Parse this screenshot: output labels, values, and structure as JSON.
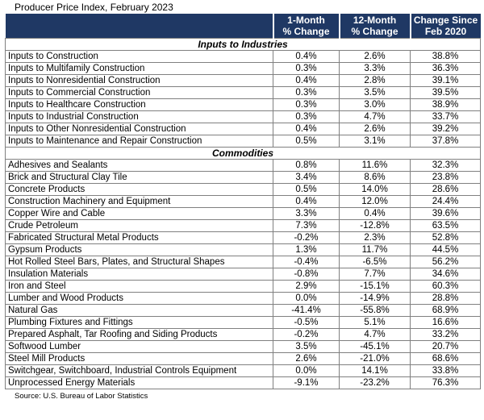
{
  "colors": {
    "header_bg": "#1F3864",
    "header_text": "#FFFFFF",
    "grid": "#808080",
    "text": "#000000"
  },
  "chart_data": {
    "type": "table",
    "title": "Producer Price Index, February 2023",
    "source": "Source: U.S. Bureau of Labor Statistics",
    "columns": [
      "",
      "1-Month\n% Change",
      "12-Month\n% Change",
      "Change Since\nFeb 2020"
    ],
    "sections": [
      {
        "name": "Inputs to Industries",
        "rows": [
          {
            "label": "Inputs to Construction",
            "values": [
              "0.4%",
              "2.6%",
              "38.8%"
            ]
          },
          {
            "label": "Inputs to Multifamily Construction",
            "values": [
              "0.3%",
              "3.3%",
              "36.3%"
            ]
          },
          {
            "label": "Inputs to Nonresidential Construction",
            "values": [
              "0.4%",
              "2.8%",
              "39.1%"
            ]
          },
          {
            "label": "Inputs to Commercial Construction",
            "values": [
              "0.3%",
              "3.5%",
              "39.5%"
            ]
          },
          {
            "label": "Inputs to Healthcare Construction",
            "values": [
              "0.3%",
              "3.0%",
              "38.9%"
            ]
          },
          {
            "label": "Inputs to Industrial Construction",
            "values": [
              "0.3%",
              "4.7%",
              "33.7%"
            ]
          },
          {
            "label": "Inputs to Other Nonresidential Construction",
            "values": [
              "0.4%",
              "2.6%",
              "39.2%"
            ]
          },
          {
            "label": "Inputs to Maintenance and Repair Construction",
            "values": [
              "0.5%",
              "3.1%",
              "37.8%"
            ]
          }
        ]
      },
      {
        "name": "Commodities",
        "rows": [
          {
            "label": "Adhesives and Sealants",
            "values": [
              "0.8%",
              "11.6%",
              "32.3%"
            ]
          },
          {
            "label": "Brick and Structural Clay Tile",
            "values": [
              "3.4%",
              "8.6%",
              "23.8%"
            ]
          },
          {
            "label": "Concrete Products",
            "values": [
              "0.5%",
              "14.0%",
              "28.6%"
            ]
          },
          {
            "label": "Construction Machinery and Equipment",
            "values": [
              "0.4%",
              "12.0%",
              "24.4%"
            ]
          },
          {
            "label": "Copper Wire and Cable",
            "values": [
              "3.3%",
              "0.4%",
              "39.6%"
            ]
          },
          {
            "label": "Crude Petroleum",
            "values": [
              "7.3%",
              "-12.8%",
              "63.5%"
            ]
          },
          {
            "label": "Fabricated Structural Metal Products",
            "values": [
              "-0.2%",
              "2.3%",
              "52.8%"
            ]
          },
          {
            "label": "Gypsum Products",
            "values": [
              "1.3%",
              "11.7%",
              "44.5%"
            ]
          },
          {
            "label": "Hot Rolled Steel Bars, Plates, and Structural Shapes",
            "values": [
              "-0.4%",
              "-6.5%",
              "56.2%"
            ]
          },
          {
            "label": "Insulation Materials",
            "values": [
              "-0.8%",
              "7.7%",
              "34.6%"
            ]
          },
          {
            "label": "Iron and Steel",
            "values": [
              "2.9%",
              "-15.1%",
              "60.3%"
            ]
          },
          {
            "label": "Lumber and Wood Products",
            "values": [
              "0.0%",
              "-14.9%",
              "28.8%"
            ]
          },
          {
            "label": "Natural Gas",
            "values": [
              "-41.4%",
              "-55.8%",
              "68.9%"
            ]
          },
          {
            "label": "Plumbing Fixtures and Fittings",
            "values": [
              "-0.5%",
              "5.1%",
              "16.6%"
            ]
          },
          {
            "label": "Prepared Asphalt, Tar Roofing and Siding Products",
            "values": [
              "-0.2%",
              "4.7%",
              "33.2%"
            ]
          },
          {
            "label": "Softwood Lumber",
            "values": [
              "3.5%",
              "-45.1%",
              "20.7%"
            ]
          },
          {
            "label": "Steel Mill Products",
            "values": [
              "2.6%",
              "-21.0%",
              "68.6%"
            ]
          },
          {
            "label": "Switchgear, Switchboard, Industrial Controls Equipment",
            "values": [
              "0.0%",
              "14.1%",
              "33.8%"
            ]
          },
          {
            "label": "Unprocessed Energy Materials",
            "values": [
              "-9.1%",
              "-23.2%",
              "76.3%"
            ]
          }
        ]
      }
    ]
  }
}
